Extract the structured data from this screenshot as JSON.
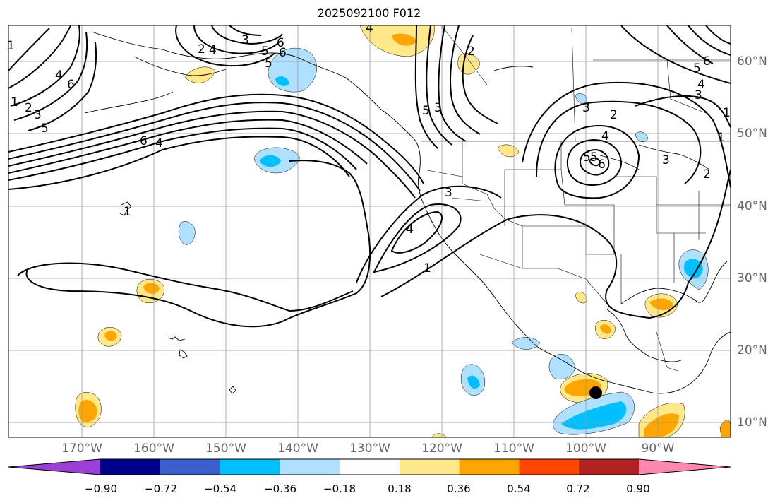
{
  "title": "2025092100 F012",
  "longitude_labels": [
    "170°W",
    "160°W",
    "150°W",
    "140°W",
    "130°W",
    "120°W",
    "110°W",
    "100°W",
    "90°W"
  ],
  "latitude_labels": [
    "60°N",
    "50°N",
    "40°N",
    "30°N",
    "20°N",
    "10°N"
  ],
  "colorbar": {
    "ticks": [
      "−0.90",
      "−0.72",
      "−0.54",
      "−0.36",
      "−0.18",
      "0.18",
      "0.36",
      "0.54",
      "0.72",
      "0.90"
    ],
    "colors": [
      "#9b3fd6",
      "#00008b",
      "#3a5fcd",
      "#00bfff",
      "#b0e0ff",
      "#ffffff",
      "#ffe88a",
      "#ffa500",
      "#ff4500",
      "#b22222",
      "#ff88b0"
    ]
  },
  "contour_labels": [
    "1",
    "2",
    "3",
    "4",
    "5",
    "6",
    "1",
    "2",
    "3",
    "4",
    "5",
    "6",
    "4",
    "3",
    "1",
    "6",
    "5",
    "4",
    "3",
    "2",
    "1",
    "5",
    "2",
    "3",
    "4",
    "5",
    "6",
    "3",
    "4",
    "5",
    "6",
    "1",
    "2",
    "3",
    "4",
    "5",
    "6",
    "1"
  ],
  "marker": "storm-center-dot",
  "colors": {
    "land_outline": "#000000",
    "grid": "#999999",
    "contour": "#000000"
  }
}
